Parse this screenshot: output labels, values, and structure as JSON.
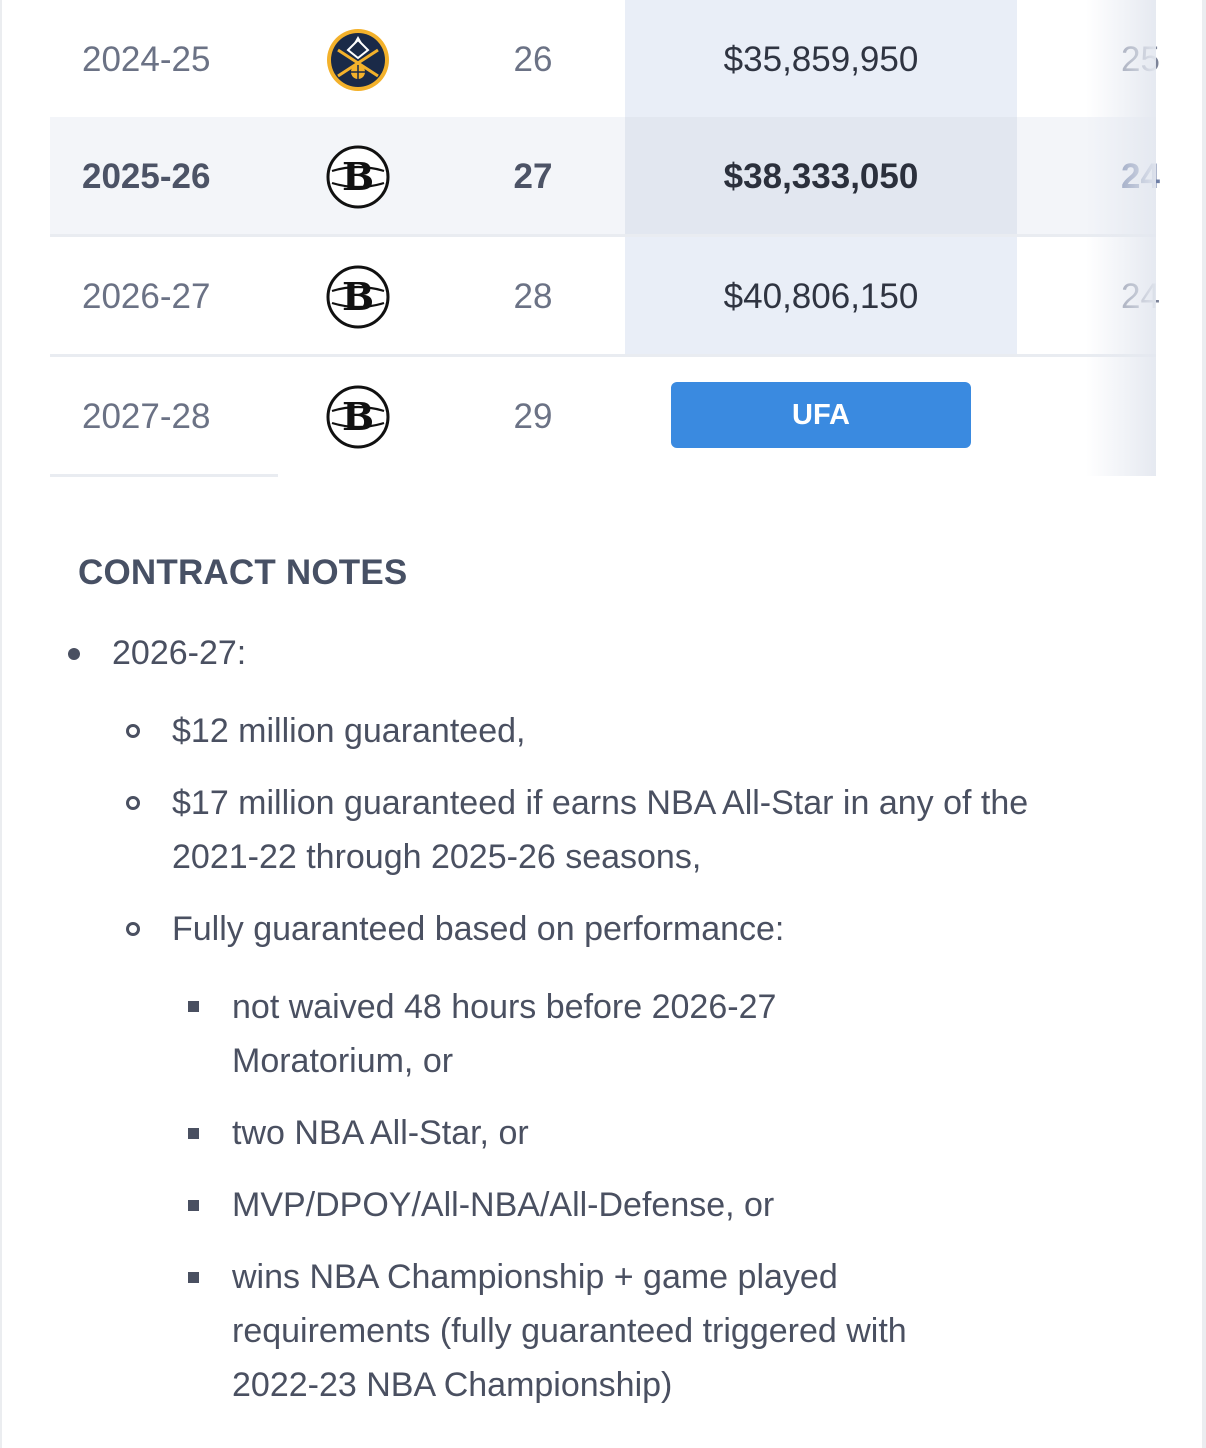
{
  "contract_table": {
    "rows": [
      {
        "season": "2024-25",
        "team_logo": "denver-nuggets-logo",
        "age": "26",
        "salary": "$35,859,950",
        "next_col": "25",
        "highlight": false
      },
      {
        "season": "2025-26",
        "team_logo": "brooklyn-nets-logo",
        "age": "27",
        "salary": "$38,333,050",
        "next_col": "24",
        "highlight": true
      },
      {
        "season": "2026-27",
        "team_logo": "brooklyn-nets-logo",
        "age": "28",
        "salary": "$40,806,150",
        "next_col": "24",
        "highlight": false
      },
      {
        "season": "2027-28",
        "team_logo": "brooklyn-nets-logo",
        "age": "29",
        "salary": "",
        "next_col": "",
        "highlight": false
      }
    ],
    "ufa_label": "UFA"
  },
  "contract_notes": {
    "title": "CONTRACT NOTES",
    "season_label": "2026-27:",
    "level2": [
      "$12 million guaranteed,",
      "$17 million guaranteed if earns NBA All-Star in any of the 2021-22 through 2025-26 seasons,",
      "Fully guaranteed based on performance:"
    ],
    "level3": [
      "not waived 48 hours before 2026-27 Moratorium, or",
      "two NBA All-Star, or",
      "MVP/DPOY/All-NBA/All-Defense, or",
      "wins NBA Championship + game played requirements (fully guaranteed triggered with 2022-23 NBA Championship)"
    ]
  },
  "colors": {
    "accent_button": "#3a8ae0",
    "salary_column_bg": "#e9eef7",
    "text": "#4a5061"
  }
}
